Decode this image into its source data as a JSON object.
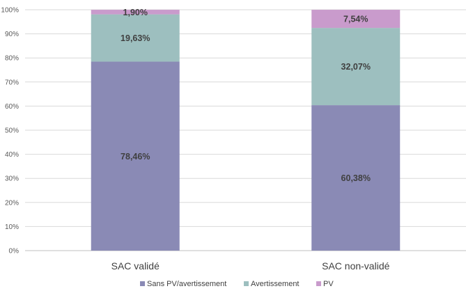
{
  "chart_data": {
    "type": "bar",
    "stacked": true,
    "percent": true,
    "categories": [
      "SAC validé",
      "SAC non-validé"
    ],
    "series": [
      {
        "name": "Sans PV/avertissement",
        "values": [
          78.46,
          60.38
        ],
        "labels": [
          "78,46%",
          "60,38%"
        ],
        "color": "#8A8AB5"
      },
      {
        "name": "Avertissement",
        "values": [
          19.63,
          32.07
        ],
        "labels": [
          "19,63%",
          "32,07%"
        ],
        "color": "#9DBFBF"
      },
      {
        "name": "PV",
        "values": [
          1.9,
          7.54
        ],
        "labels": [
          "1,90%",
          "7,54%"
        ],
        "color": "#C99BCC"
      }
    ],
    "ylim": [
      0,
      100
    ],
    "yticks": [
      "0%",
      "10%",
      "20%",
      "30%",
      "40%",
      "50%",
      "60%",
      "70%",
      "80%",
      "90%",
      "100%"
    ],
    "grid": true,
    "legend": "bottom",
    "title": "",
    "xlabel": "",
    "ylabel": ""
  }
}
